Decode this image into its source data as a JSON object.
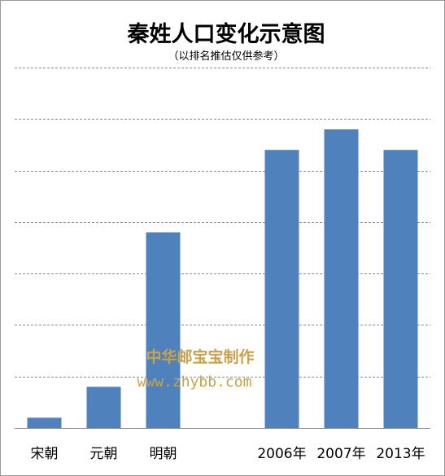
{
  "chart_data": {
    "type": "bar",
    "title": "秦姓人口变化示意图",
    "subtitle": "（以排名推估仅供参考）",
    "categories": [
      "宋朝",
      "元朝",
      "明朝",
      "",
      "2006年",
      "2007年",
      "2013年"
    ],
    "values": [
      2,
      8,
      38,
      null,
      54,
      58,
      54
    ],
    "ylim": [
      0,
      70
    ],
    "grid": true,
    "bar_color": "#4f81bd",
    "grid_color": "#8c8c8c"
  },
  "watermark": {
    "line1": "中华邮宝宝制作",
    "line2": "www.zhybb.com",
    "color": "#c9a14a"
  }
}
